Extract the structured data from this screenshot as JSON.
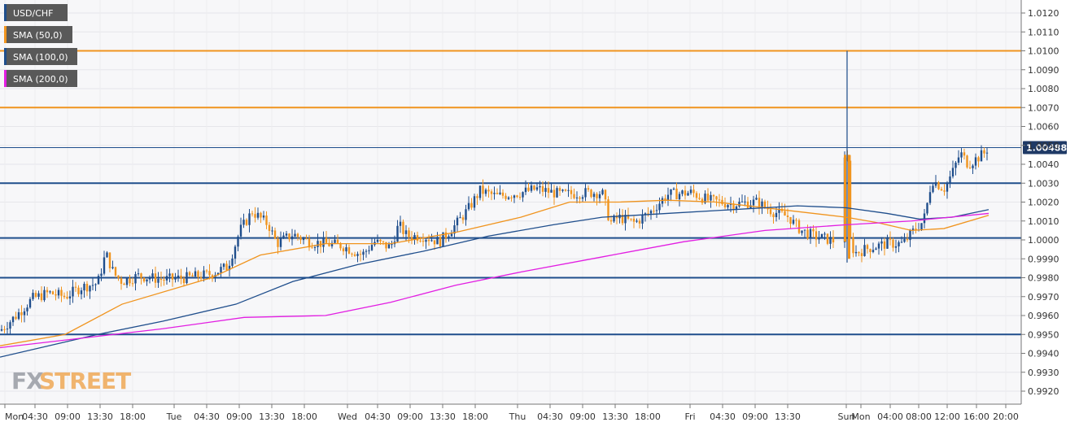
{
  "legend": [
    {
      "label": "USD/CHF",
      "color": "#1f4e8c"
    },
    {
      "label": "SMA (50,0)",
      "color": "#f0941e"
    },
    {
      "label": "SMA (100,0)",
      "color": "#1f4e8c"
    },
    {
      "label": "SMA (200,0)",
      "color": "#e21ee2"
    }
  ],
  "watermark": {
    "part1": "FX",
    "part2": "STREET"
  },
  "colors": {
    "up_candle": "#1f4e8c",
    "down_candle": "#f0941e",
    "sma50": "#f0941e",
    "sma100": "#1f4e8c",
    "sma200": "#e21ee2",
    "support_line": "#1f4e8c",
    "resistance_line": "#f0941e",
    "price_tag_bg": "#1f3a66"
  },
  "chart_data": {
    "type": "candlestick",
    "symbol": "USD/CHF",
    "ylim": [
      0.9915,
      1.0126
    ],
    "y_ticks": [
      "1.0120",
      "1.0110",
      "1.0100",
      "1.0090",
      "1.0080",
      "1.0070",
      "1.0060",
      "1.0050",
      "1.0040",
      "1.0030",
      "1.0020",
      "1.0010",
      "1.0000",
      "0.9990",
      "0.9980",
      "0.9970",
      "0.9960",
      "0.9950",
      "0.9940",
      "0.9930",
      "0.9920"
    ],
    "x_ticks": [
      "Mon",
      "04:30",
      "09:00",
      "13:30",
      "18:00",
      "Tue",
      "04:30",
      "09:00",
      "13:30",
      "18:00",
      "Wed",
      "04:30",
      "09:00",
      "13:30",
      "18:00",
      "Thu",
      "04:30",
      "09:00",
      "13:30",
      "18:00",
      "Fri",
      "04:30",
      "09:00",
      "13:30",
      "Sun",
      "Mon",
      "04:00",
      "08:00",
      "12:00",
      "16:00",
      "20:00"
    ],
    "last_price": "1.00488",
    "resistance_lines": [
      1.01,
      1.007
    ],
    "support_lines": [
      1.003,
      1.0001,
      0.998,
      0.995
    ],
    "close_path": [
      [
        0,
        0.9952
      ],
      [
        20,
        0.996
      ],
      [
        40,
        0.9969
      ],
      [
        60,
        0.9972
      ],
      [
        80,
        0.997
      ],
      [
        100,
        0.9975
      ],
      [
        120,
        0.9977
      ],
      [
        130,
        0.9993
      ],
      [
        140,
        0.9982
      ],
      [
        150,
        0.9978
      ],
      [
        170,
        0.9981
      ],
      [
        200,
        0.9979
      ],
      [
        230,
        0.998
      ],
      [
        260,
        0.9982
      ],
      [
        280,
        0.9986
      ],
      [
        295,
        1.0005
      ],
      [
        310,
        1.0015
      ],
      [
        330,
        1.0008
      ],
      [
        340,
        0.9998
      ],
      [
        360,
        1.0003
      ],
      [
        380,
        0.9999
      ],
      [
        400,
        0.9998
      ],
      [
        420,
        0.9997
      ],
      [
        445,
        0.9992
      ],
      [
        460,
        0.9999
      ],
      [
        480,
        0.9996
      ],
      [
        490,
        1.0008
      ],
      [
        500,
        1.0002
      ],
      [
        520,
        1.0002
      ],
      [
        540,
        0.9999
      ],
      [
        560,
        1.0008
      ],
      [
        575,
        1.0016
      ],
      [
        590,
        1.0026
      ],
      [
        610,
        1.0023
      ],
      [
        640,
        1.0025
      ],
      [
        660,
        1.0027
      ],
      [
        690,
        1.0024
      ],
      [
        720,
        1.0025
      ],
      [
        740,
        1.0025
      ],
      [
        750,
        1.0009
      ],
      [
        760,
        1.0012
      ],
      [
        780,
        1.0009
      ],
      [
        800,
        1.0015
      ],
      [
        820,
        1.0024
      ],
      [
        850,
        1.0025
      ],
      [
        870,
        1.0021
      ],
      [
        900,
        1.0019
      ],
      [
        930,
        1.002
      ],
      [
        950,
        1.0015
      ],
      [
        970,
        1.0012
      ],
      [
        975,
        1.0009
      ],
      [
        985,
        1.0005
      ],
      [
        1000,
        1.0002
      ],
      [
        1020,
        1.0
      ],
      [
        1030,
        0.9999
      ],
      [
        1035,
        1.0005
      ],
      [
        1038,
        1.0045
      ],
      [
        1041,
        1.0045
      ],
      [
        1045,
        1.0
      ],
      [
        1050,
        0.9993
      ],
      [
        1070,
        0.9996
      ],
      [
        1090,
        0.9998
      ],
      [
        1110,
        0.9998
      ],
      [
        1125,
        1.0006
      ],
      [
        1135,
        1.001
      ],
      [
        1140,
        1.002
      ],
      [
        1145,
        1.0032
      ],
      [
        1160,
        1.0027
      ],
      [
        1170,
        1.0035
      ],
      [
        1180,
        1.0046
      ],
      [
        1190,
        1.004
      ],
      [
        1200,
        1.0043
      ],
      [
        1210,
        1.0046
      ],
      [
        1213,
        1.0048
      ]
    ],
    "spikes": [
      {
        "x": 1041,
        "high": 1.01,
        "low": 0.9988
      }
    ],
    "sma50": [
      [
        0,
        0.9944
      ],
      [
        80,
        0.995
      ],
      [
        150,
        0.9966
      ],
      [
        260,
        0.998
      ],
      [
        320,
        0.9992
      ],
      [
        400,
        0.9998
      ],
      [
        480,
        0.9998
      ],
      [
        560,
        1.0004
      ],
      [
        640,
        1.0012
      ],
      [
        700,
        1.002
      ],
      [
        760,
        1.002
      ],
      [
        820,
        1.0021
      ],
      [
        880,
        1.002
      ],
      [
        960,
        1.0016
      ],
      [
        1040,
        1.0012
      ],
      [
        1080,
        1.0009
      ],
      [
        1120,
        1.0005
      ],
      [
        1160,
        1.0006
      ],
      [
        1215,
        1.0013
      ]
    ],
    "sma100": [
      [
        0,
        0.9938
      ],
      [
        120,
        0.995
      ],
      [
        200,
        0.9957
      ],
      [
        290,
        0.9966
      ],
      [
        360,
        0.9978
      ],
      [
        440,
        0.9987
      ],
      [
        520,
        0.9994
      ],
      [
        600,
        1.0002
      ],
      [
        680,
        1.0008
      ],
      [
        740,
        1.0012
      ],
      [
        820,
        1.0014
      ],
      [
        900,
        1.0016
      ],
      [
        980,
        1.0018
      ],
      [
        1040,
        1.0017
      ],
      [
        1090,
        1.0014
      ],
      [
        1130,
        1.0011
      ],
      [
        1170,
        1.0012
      ],
      [
        1215,
        1.0016
      ]
    ],
    "sma200": [
      [
        0,
        0.9943
      ],
      [
        100,
        0.9948
      ],
      [
        200,
        0.9953
      ],
      [
        300,
        0.9959
      ],
      [
        400,
        0.996
      ],
      [
        480,
        0.9967
      ],
      [
        560,
        0.9976
      ],
      [
        640,
        0.9983
      ],
      [
        740,
        0.9991
      ],
      [
        840,
        0.9999
      ],
      [
        940,
        1.0005
      ],
      [
        1040,
        1.0008
      ],
      [
        1120,
        1.001
      ],
      [
        1215,
        1.0014
      ]
    ]
  }
}
